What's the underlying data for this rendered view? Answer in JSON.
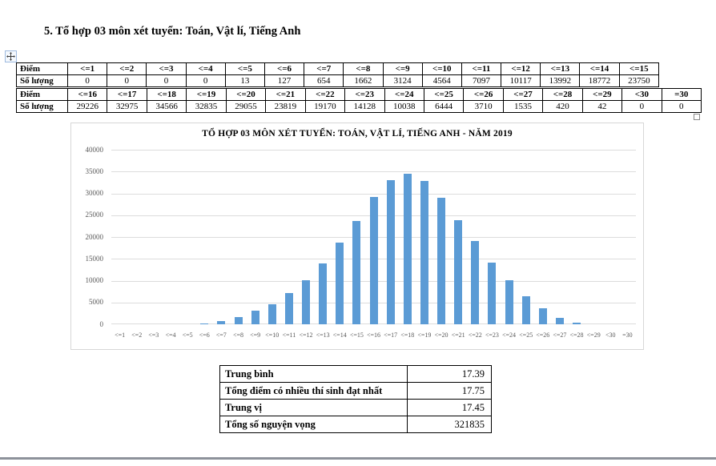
{
  "page": {
    "heading": "5. Tổ hợp 03 môn xét tuyển: Toán, Vật lí, Tiếng Anh"
  },
  "score_table": {
    "row_groups": [
      {
        "header": [
          "Điểm",
          "<=1",
          "<=2",
          "<=3",
          "<=4",
          "<=5",
          "<=6",
          "<=7",
          "<=8",
          "<=9",
          "<=10",
          "<=11",
          "<=12",
          "<=13",
          "<=14",
          "<=15"
        ],
        "values": [
          "Số lượng",
          "0",
          "0",
          "0",
          "0",
          "13",
          "127",
          "654",
          "1662",
          "3124",
          "4564",
          "7097",
          "10117",
          "13992",
          "18772",
          "23750"
        ]
      },
      {
        "header": [
          "Điểm",
          "<=16",
          "<=17",
          "<=18",
          "<=19",
          "<=20",
          "<=21",
          "<=22",
          "<=23",
          "<=24",
          "<=25",
          "<=26",
          "<=27",
          "<=28",
          "<=29",
          "<30",
          "=30"
        ],
        "values": [
          "Số lượng",
          "29226",
          "32975",
          "34566",
          "32835",
          "29055",
          "23819",
          "19170",
          "14128",
          "10038",
          "6444",
          "3710",
          "1535",
          "420",
          "42",
          "0",
          "0"
        ]
      }
    ]
  },
  "chart_data": {
    "type": "bar",
    "title": "TỔ HỢP 03 MÔN XÉT TUYỂN: TOÁN, VẬT LÍ, TIẾNG ANH - NĂM 2019",
    "categories": [
      "<=1",
      "<=2",
      "<=3",
      "<=4",
      "<=5",
      "<=6",
      "<=7",
      "<=8",
      "<=9",
      "<=10",
      "<=11",
      "<=12",
      "<=13",
      "<=14",
      "<=15",
      "<=16",
      "<=17",
      "<=18",
      "<=19",
      "<=20",
      "<=21",
      "<=22",
      "<=23",
      "<=24",
      "<=25",
      "<=26",
      "<=27",
      "<=28",
      "<=29",
      "<30",
      "=30"
    ],
    "values": [
      0,
      0,
      0,
      0,
      13,
      127,
      654,
      1662,
      3124,
      4564,
      7097,
      10117,
      13992,
      18772,
      23750,
      29226,
      32975,
      34566,
      32835,
      29055,
      23819,
      19170,
      14128,
      10038,
      6444,
      3710,
      1535,
      420,
      42,
      0,
      0
    ],
    "xlabel": "",
    "ylabel": "",
    "ylim": [
      0,
      40000
    ],
    "ytick_step": 5000,
    "grid": true,
    "legend": "none",
    "bar_color": "#5B9BD5"
  },
  "summary_table": {
    "rows": [
      {
        "label": "Trung bình",
        "value": "17.39"
      },
      {
        "label": "Tổng điểm có nhiều thí sinh đạt nhất",
        "value": "17.75"
      },
      {
        "label": "Trung vị",
        "value": "17.45"
      },
      {
        "label": "Tổng số nguyện vọng",
        "value": "321835"
      }
    ]
  }
}
